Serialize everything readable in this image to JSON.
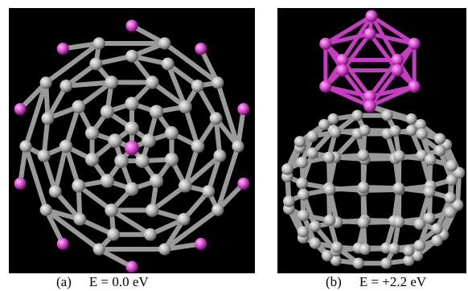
{
  "figure": {
    "panel_a": {
      "label": "(a)",
      "energy_text": "E = 0.0 eV"
    },
    "panel_b": {
      "label": "(b)",
      "energy_text": "E = +2.2 eV"
    }
  },
  "colors": {
    "background": "#000000",
    "carbon_atom": "#b5b5b5",
    "carbon_bond": "#9a9a9a",
    "dopant_atom": "#d94bd0",
    "dopant_bond": "#c83cc3",
    "page": "#ffffff"
  }
}
